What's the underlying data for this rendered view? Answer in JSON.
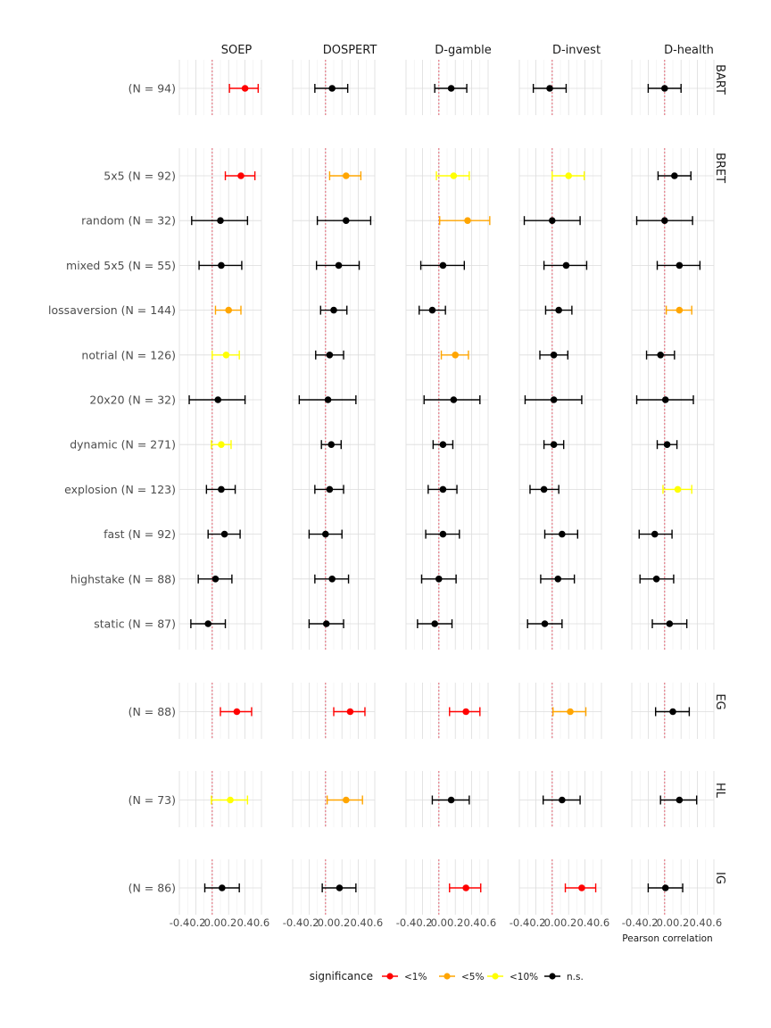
{
  "chart_data": {
    "type": "scatter",
    "title": "",
    "xlabel": "Pearson correlation",
    "xlim": [
      -0.4,
      0.6
    ],
    "x_ticks": [
      "-0.4",
      "-0.2",
      "0.0",
      "0.2",
      "0.4",
      "0.6"
    ],
    "x_tick_values": [
      -0.4,
      -0.2,
      0.0,
      0.2,
      0.4,
      0.6
    ],
    "reference_line": 0,
    "grid": true,
    "legend_position": "bottom",
    "columns": [
      "SOEP",
      "DOSPERT",
      "D-gamble",
      "D-invest",
      "D-health"
    ],
    "colors": {
      "<1%": "#ff0000",
      "<5%": "#ffa500",
      "<10%": "#ffff00",
      "n.s.": "#000000",
      "ref_line": "#e06070"
    },
    "legend": {
      "title": "significance",
      "items": [
        "<1%",
        "<5%",
        "<10%",
        "n.s."
      ]
    },
    "facets": [
      {
        "name": "BART",
        "rows": [
          {
            "label": "(N = 94)",
            "points": [
              {
                "est": 0.4,
                "lo": 0.21,
                "hi": 0.56,
                "sig": "<1%"
              },
              {
                "est": 0.08,
                "lo": -0.13,
                "hi": 0.27,
                "sig": "n.s."
              },
              {
                "est": 0.15,
                "lo": -0.05,
                "hi": 0.34,
                "sig": "n.s."
              },
              {
                "est": -0.03,
                "lo": -0.23,
                "hi": 0.17,
                "sig": "n.s."
              },
              {
                "est": 0.0,
                "lo": -0.2,
                "hi": 0.2,
                "sig": "n.s."
              }
            ]
          }
        ]
      },
      {
        "name": "BRET",
        "rows": [
          {
            "label": "5x5 (N = 92)",
            "points": [
              {
                "est": 0.35,
                "lo": 0.16,
                "hi": 0.52,
                "sig": "<1%"
              },
              {
                "est": 0.25,
                "lo": 0.05,
                "hi": 0.43,
                "sig": "<5%"
              },
              {
                "est": 0.18,
                "lo": -0.03,
                "hi": 0.37,
                "sig": "<10%"
              },
              {
                "est": 0.2,
                "lo": 0.0,
                "hi": 0.39,
                "sig": "<10%"
              },
              {
                "est": 0.12,
                "lo": -0.08,
                "hi": 0.32,
                "sig": "n.s."
              }
            ]
          },
          {
            "label": "random (N = 32)",
            "points": [
              {
                "est": 0.1,
                "lo": -0.25,
                "hi": 0.43,
                "sig": "n.s."
              },
              {
                "est": 0.25,
                "lo": -0.1,
                "hi": 0.55,
                "sig": "n.s."
              },
              {
                "est": 0.35,
                "lo": 0.01,
                "hi": 0.62,
                "sig": "<5%"
              },
              {
                "est": 0.0,
                "lo": -0.34,
                "hi": 0.34,
                "sig": "n.s."
              },
              {
                "est": 0.0,
                "lo": -0.34,
                "hi": 0.34,
                "sig": "n.s."
              }
            ]
          },
          {
            "label": "mixed 5x5 (N = 55)",
            "points": [
              {
                "est": 0.11,
                "lo": -0.16,
                "hi": 0.36,
                "sig": "n.s."
              },
              {
                "est": 0.16,
                "lo": -0.11,
                "hi": 0.41,
                "sig": "n.s."
              },
              {
                "est": 0.05,
                "lo": -0.22,
                "hi": 0.31,
                "sig": "n.s."
              },
              {
                "est": 0.17,
                "lo": -0.1,
                "hi": 0.42,
                "sig": "n.s."
              },
              {
                "est": 0.18,
                "lo": -0.09,
                "hi": 0.43,
                "sig": "n.s."
              }
            ]
          },
          {
            "label": "lossaversion (N = 144)",
            "points": [
              {
                "est": 0.2,
                "lo": 0.04,
                "hi": 0.35,
                "sig": "<5%"
              },
              {
                "est": 0.1,
                "lo": -0.06,
                "hi": 0.26,
                "sig": "n.s."
              },
              {
                "est": -0.08,
                "lo": -0.24,
                "hi": 0.08,
                "sig": "n.s."
              },
              {
                "est": 0.08,
                "lo": -0.08,
                "hi": 0.24,
                "sig": "n.s."
              },
              {
                "est": 0.18,
                "lo": 0.02,
                "hi": 0.33,
                "sig": "<5%"
              }
            ]
          },
          {
            "label": "notrial (N = 126)",
            "points": [
              {
                "est": 0.17,
                "lo": 0.0,
                "hi": 0.33,
                "sig": "<10%"
              },
              {
                "est": 0.05,
                "lo": -0.12,
                "hi": 0.22,
                "sig": "n.s."
              },
              {
                "est": 0.2,
                "lo": 0.03,
                "hi": 0.36,
                "sig": "<5%"
              },
              {
                "est": 0.02,
                "lo": -0.15,
                "hi": 0.19,
                "sig": "n.s."
              },
              {
                "est": -0.05,
                "lo": -0.22,
                "hi": 0.12,
                "sig": "n.s."
              }
            ]
          },
          {
            "label": "20x20 (N = 32)",
            "points": [
              {
                "est": 0.07,
                "lo": -0.28,
                "hi": 0.4,
                "sig": "n.s."
              },
              {
                "est": 0.03,
                "lo": -0.32,
                "hi": 0.37,
                "sig": "n.s."
              },
              {
                "est": 0.18,
                "lo": -0.18,
                "hi": 0.5,
                "sig": "n.s."
              },
              {
                "est": 0.02,
                "lo": -0.33,
                "hi": 0.36,
                "sig": "n.s."
              },
              {
                "est": 0.01,
                "lo": -0.34,
                "hi": 0.35,
                "sig": "n.s."
              }
            ]
          },
          {
            "label": "dynamic (N = 271)",
            "points": [
              {
                "est": 0.11,
                "lo": -0.01,
                "hi": 0.23,
                "sig": "<10%"
              },
              {
                "est": 0.07,
                "lo": -0.05,
                "hi": 0.19,
                "sig": "n.s."
              },
              {
                "est": 0.05,
                "lo": -0.07,
                "hi": 0.17,
                "sig": "n.s."
              },
              {
                "est": 0.02,
                "lo": -0.1,
                "hi": 0.14,
                "sig": "n.s."
              },
              {
                "est": 0.03,
                "lo": -0.09,
                "hi": 0.15,
                "sig": "n.s."
              }
            ]
          },
          {
            "label": "explosion (N = 123)",
            "points": [
              {
                "est": 0.11,
                "lo": -0.07,
                "hi": 0.28,
                "sig": "n.s."
              },
              {
                "est": 0.05,
                "lo": -0.13,
                "hi": 0.22,
                "sig": "n.s."
              },
              {
                "est": 0.05,
                "lo": -0.13,
                "hi": 0.22,
                "sig": "n.s."
              },
              {
                "est": -0.1,
                "lo": -0.27,
                "hi": 0.08,
                "sig": "n.s."
              },
              {
                "est": 0.16,
                "lo": -0.02,
                "hi": 0.33,
                "sig": "<10%"
              }
            ]
          },
          {
            "label": "fast (N = 92)",
            "points": [
              {
                "est": 0.15,
                "lo": -0.05,
                "hi": 0.34,
                "sig": "n.s."
              },
              {
                "est": 0.0,
                "lo": -0.2,
                "hi": 0.2,
                "sig": "n.s."
              },
              {
                "est": 0.05,
                "lo": -0.16,
                "hi": 0.25,
                "sig": "n.s."
              },
              {
                "est": 0.12,
                "lo": -0.09,
                "hi": 0.31,
                "sig": "n.s."
              },
              {
                "est": -0.12,
                "lo": -0.31,
                "hi": 0.09,
                "sig": "n.s."
              }
            ]
          },
          {
            "label": "highstake (N = 88)",
            "points": [
              {
                "est": 0.04,
                "lo": -0.17,
                "hi": 0.24,
                "sig": "n.s."
              },
              {
                "est": 0.08,
                "lo": -0.13,
                "hi": 0.28,
                "sig": "n.s."
              },
              {
                "est": 0.0,
                "lo": -0.21,
                "hi": 0.21,
                "sig": "n.s."
              },
              {
                "est": 0.07,
                "lo": -0.14,
                "hi": 0.27,
                "sig": "n.s."
              },
              {
                "est": -0.1,
                "lo": -0.3,
                "hi": 0.11,
                "sig": "n.s."
              }
            ]
          },
          {
            "label": "static (N = 87)",
            "points": [
              {
                "est": -0.05,
                "lo": -0.26,
                "hi": 0.16,
                "sig": "n.s."
              },
              {
                "est": 0.01,
                "lo": -0.2,
                "hi": 0.22,
                "sig": "n.s."
              },
              {
                "est": -0.05,
                "lo": -0.26,
                "hi": 0.16,
                "sig": "n.s."
              },
              {
                "est": -0.09,
                "lo": -0.3,
                "hi": 0.12,
                "sig": "n.s."
              },
              {
                "est": 0.06,
                "lo": -0.15,
                "hi": 0.27,
                "sig": "n.s."
              }
            ]
          }
        ]
      },
      {
        "name": "EG",
        "rows": [
          {
            "label": "(N = 88)",
            "points": [
              {
                "est": 0.3,
                "lo": 0.1,
                "hi": 0.48,
                "sig": "<1%"
              },
              {
                "est": 0.3,
                "lo": 0.1,
                "hi": 0.48,
                "sig": "<1%"
              },
              {
                "est": 0.33,
                "lo": 0.13,
                "hi": 0.5,
                "sig": "<1%"
              },
              {
                "est": 0.22,
                "lo": 0.01,
                "hi": 0.41,
                "sig": "<5%"
              },
              {
                "est": 0.1,
                "lo": -0.11,
                "hi": 0.3,
                "sig": "n.s."
              }
            ]
          }
        ]
      },
      {
        "name": "HL",
        "rows": [
          {
            "label": "(N = 73)",
            "points": [
              {
                "est": 0.22,
                "lo": -0.01,
                "hi": 0.43,
                "sig": "<10%"
              },
              {
                "est": 0.25,
                "lo": 0.02,
                "hi": 0.45,
                "sig": "<5%"
              },
              {
                "est": 0.15,
                "lo": -0.08,
                "hi": 0.37,
                "sig": "n.s."
              },
              {
                "est": 0.12,
                "lo": -0.11,
                "hi": 0.34,
                "sig": "n.s."
              },
              {
                "est": 0.18,
                "lo": -0.05,
                "hi": 0.39,
                "sig": "n.s."
              }
            ]
          }
        ]
      },
      {
        "name": "IG",
        "rows": [
          {
            "label": "(N = 86)",
            "points": [
              {
                "est": 0.12,
                "lo": -0.09,
                "hi": 0.33,
                "sig": "n.s."
              },
              {
                "est": 0.17,
                "lo": -0.04,
                "hi": 0.37,
                "sig": "n.s."
              },
              {
                "est": 0.33,
                "lo": 0.13,
                "hi": 0.51,
                "sig": "<1%"
              },
              {
                "est": 0.36,
                "lo": 0.16,
                "hi": 0.53,
                "sig": "<1%"
              },
              {
                "est": 0.01,
                "lo": -0.2,
                "hi": 0.22,
                "sig": "n.s."
              }
            ]
          }
        ]
      }
    ]
  }
}
